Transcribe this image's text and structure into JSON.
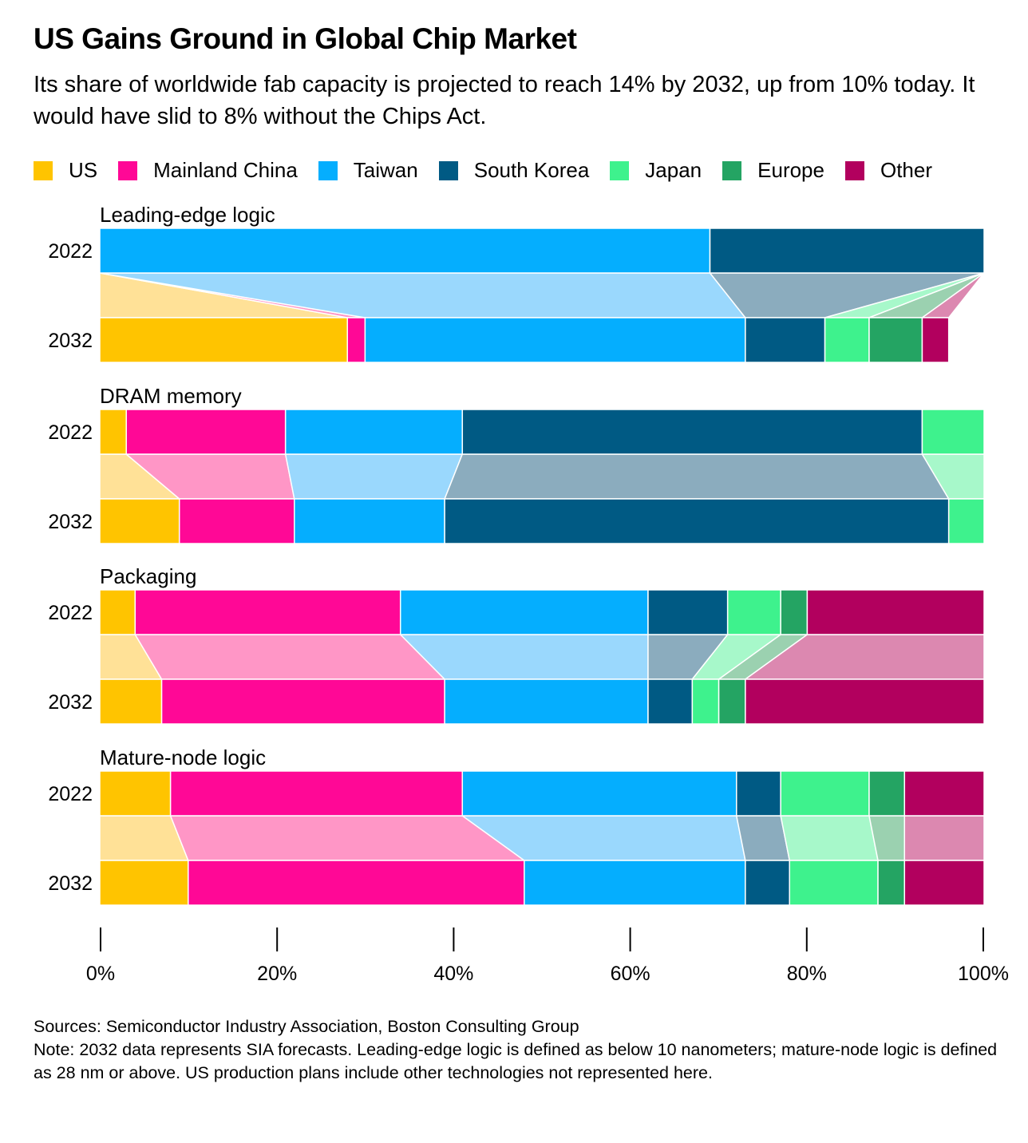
{
  "title": "US Gains Ground in Global Chip Market",
  "subtitle": "Its share of worldwide fab capacity is projected to reach 14% by 2032, up from 10% today. It would have slid to 8% without the Chips Act.",
  "footer": {
    "sources": "Sources: Semiconductor Industry Association, Boston Consulting Group",
    "note": "Note: 2032 data represents SIA forecasts. Leading-edge logic is defined as below 10 nanometers; mature-node logic is defined as 28 nm or above. US production plans include other technologies not represented here."
  },
  "chart_data": {
    "type": "bar",
    "orientation": "horizontal-stacked-100",
    "series_names": [
      "US",
      "Mainland China",
      "Taiwan",
      "South Korea",
      "Japan",
      "Europe",
      "Other"
    ],
    "colors": [
      "#ffc400",
      "#ff0896",
      "#05aefe",
      "#005a84",
      "#3ef28d",
      "#24a463",
      "#b2005e"
    ],
    "faded_colors": [
      "#ffe197",
      "#ff96c6",
      "#9ad8fd",
      "#8bacbe",
      "#a7f8ca",
      "#9bd1b0",
      "#dc88b0"
    ],
    "xlim": [
      0,
      100
    ],
    "x_ticks": [
      "0%",
      "20%",
      "40%",
      "60%",
      "80%",
      "100%"
    ],
    "legend_position": "top",
    "groups": [
      {
        "name": "Leading-edge logic",
        "rows": [
          {
            "year": "2022",
            "values": [
              0,
              0,
              69,
              31,
              0,
              0,
              0
            ]
          },
          {
            "year": "2032",
            "values": [
              28,
              2,
              43,
              9,
              5,
              6,
              3
            ]
          }
        ]
      },
      {
        "name": "DRAM memory",
        "rows": [
          {
            "year": "2022",
            "values": [
              3,
              18,
              20,
              52,
              7,
              0,
              0
            ]
          },
          {
            "year": "2032",
            "values": [
              9,
              13,
              17,
              57,
              4,
              0,
              0
            ]
          }
        ]
      },
      {
        "name": "Packaging",
        "rows": [
          {
            "year": "2022",
            "values": [
              4,
              30,
              28,
              9,
              6,
              3,
              20
            ]
          },
          {
            "year": "2032",
            "values": [
              7,
              32,
              23,
              5,
              3,
              3,
              27
            ]
          }
        ]
      },
      {
        "name": "Mature-node logic",
        "rows": [
          {
            "year": "2022",
            "values": [
              8,
              33,
              31,
              5,
              10,
              4,
              9
            ]
          },
          {
            "year": "2032",
            "values": [
              10,
              38,
              25,
              5,
              10,
              3,
              9
            ]
          }
        ]
      }
    ]
  }
}
